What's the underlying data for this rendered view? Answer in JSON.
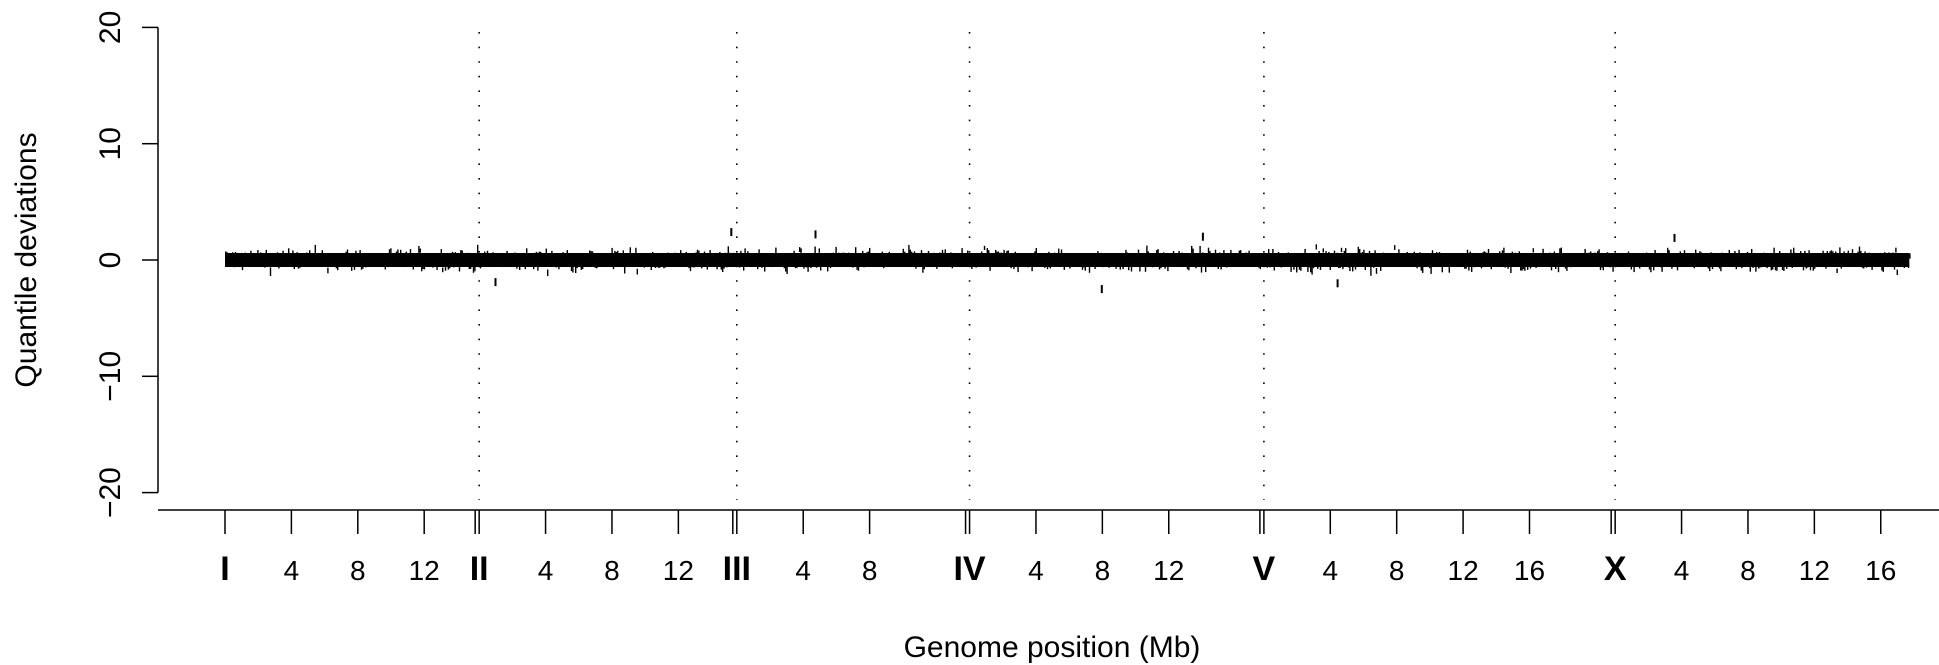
{
  "chart_data": {
    "type": "scatter",
    "xlabel": "Genome position (Mb)",
    "ylabel": "Quantile deviations",
    "ylim": [
      -20,
      20
    ],
    "yticks": [
      -20,
      -10,
      0,
      10,
      20
    ],
    "ytick_labels": [
      "−20",
      "−10",
      "0",
      "10",
      "20"
    ],
    "boundary_lines": "dotted",
    "point_color": "#000000",
    "chromosomes": [
      {
        "name": "I",
        "length_mb": 15.07,
        "ticks": [
          4,
          8,
          12
        ]
      },
      {
        "name": "II",
        "length_mb": 15.28,
        "ticks": [
          4,
          8,
          12
        ]
      },
      {
        "name": "III",
        "length_mb": 13.78,
        "ticks": [
          4,
          8
        ]
      },
      {
        "name": "IV",
        "length_mb": 17.49,
        "ticks": [
          4,
          8,
          12
        ]
      },
      {
        "name": "V",
        "length_mb": 20.92,
        "ticks": [
          4,
          8,
          12,
          16
        ]
      },
      {
        "name": "X",
        "length_mb": 17.72,
        "ticks": [
          4,
          8,
          12,
          16
        ]
      }
    ],
    "series": [
      {
        "values_summary": {
          "center": 0,
          "typical_range": [
            -1.5,
            1.5
          ],
          "max_observed": 2.5,
          "min_observed": -2.8
        }
      }
    ]
  }
}
